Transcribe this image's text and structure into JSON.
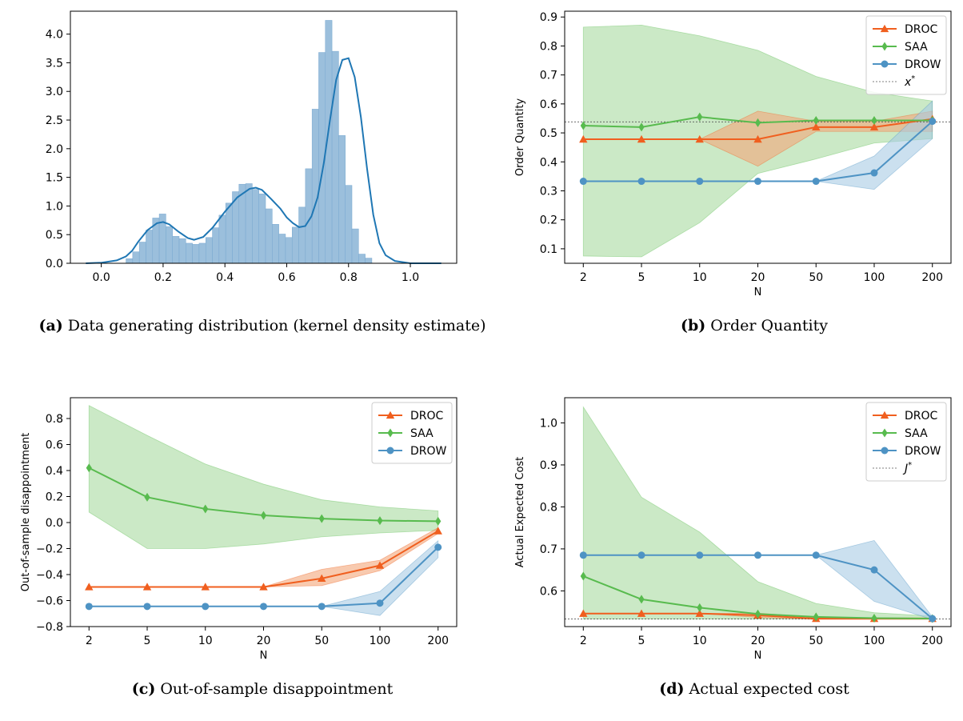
{
  "chart_data": [
    {
      "id": "a",
      "type": "bar",
      "caption_letter": "(a)",
      "caption_text": "Data generating distribution (kernel density estimate)",
      "title": "",
      "xlabel": "",
      "ylabel": "",
      "xlim": [
        -0.1,
        1.15
      ],
      "ylim": [
        0,
        4.4
      ],
      "xticks": [
        0.0,
        0.2,
        0.4,
        0.6,
        0.8,
        1.0
      ],
      "xtick_labels": [
        "0.0",
        "0.2",
        "0.4",
        "0.6",
        "0.8",
        "1.0"
      ],
      "yticks": [
        0.0,
        0.5,
        1.0,
        1.5,
        2.0,
        2.5,
        3.0,
        3.5,
        4.0
      ],
      "ytick_labels": [
        "0.0",
        "0.5",
        "1.0",
        "1.5",
        "2.0",
        "2.5",
        "3.0",
        "3.5",
        "4.0"
      ],
      "histogram": {
        "bin_start": 0.08,
        "bin_width": 0.0215,
        "heights": [
          0.08,
          0.2,
          0.37,
          0.58,
          0.79,
          0.86,
          0.64,
          0.47,
          0.43,
          0.35,
          0.33,
          0.35,
          0.45,
          0.62,
          0.84,
          1.05,
          1.25,
          1.38,
          1.39,
          1.29,
          1.21,
          0.95,
          0.68,
          0.51,
          0.45,
          0.63,
          0.98,
          1.65,
          2.69,
          3.68,
          4.24,
          3.7,
          2.23,
          1.36,
          0.6,
          0.16,
          0.09
        ]
      },
      "kde": {
        "x": [
          -0.05,
          0.0,
          0.05,
          0.08,
          0.1,
          0.12,
          0.15,
          0.18,
          0.2,
          0.22,
          0.25,
          0.28,
          0.3,
          0.33,
          0.36,
          0.4,
          0.44,
          0.48,
          0.5,
          0.52,
          0.55,
          0.58,
          0.6,
          0.62,
          0.64,
          0.66,
          0.68,
          0.7,
          0.72,
          0.74,
          0.76,
          0.78,
          0.8,
          0.82,
          0.84,
          0.86,
          0.88,
          0.9,
          0.92,
          0.95,
          1.0,
          1.05,
          1.1
        ],
        "y": [
          0.0,
          0.01,
          0.05,
          0.12,
          0.22,
          0.38,
          0.58,
          0.7,
          0.72,
          0.68,
          0.55,
          0.44,
          0.41,
          0.46,
          0.62,
          0.9,
          1.15,
          1.3,
          1.32,
          1.28,
          1.12,
          0.95,
          0.8,
          0.7,
          0.63,
          0.65,
          0.82,
          1.15,
          1.75,
          2.5,
          3.2,
          3.55,
          3.58,
          3.25,
          2.55,
          1.65,
          0.85,
          0.35,
          0.14,
          0.04,
          0.0,
          0.0,
          0.0
        ]
      },
      "colors": {
        "bar": "#9bbfdc",
        "bar_edge": "#78a8d0",
        "kde": "#1f77b4"
      }
    },
    {
      "id": "b",
      "type": "line",
      "caption_letter": "(b)",
      "caption_text": "Order Quantity",
      "title": "",
      "xlabel": "N",
      "ylabel": "Order Quantity",
      "categories": [
        "2",
        "5",
        "10",
        "20",
        "50",
        "100",
        "200"
      ],
      "ylim": [
        0.05,
        0.92
      ],
      "yticks": [
        0.1,
        0.2,
        0.3,
        0.4,
        0.5,
        0.6,
        0.7,
        0.8,
        0.9
      ],
      "ytick_labels": [
        "0.1",
        "0.2",
        "0.3",
        "0.4",
        "0.5",
        "0.6",
        "0.7",
        "0.8",
        "0.9"
      ],
      "legend_position": "top-right",
      "series": [
        {
          "name": "DROC",
          "marker": "triangle",
          "color": "#f05f1f",
          "band_color": "#f3a77a",
          "values": [
            0.478,
            0.478,
            0.478,
            0.478,
            0.52,
            0.52,
            0.548
          ],
          "lower": [
            0.478,
            0.478,
            0.478,
            0.385,
            0.505,
            0.505,
            0.505
          ],
          "upper": [
            0.478,
            0.478,
            0.478,
            0.575,
            0.54,
            0.54,
            0.575
          ]
        },
        {
          "name": "SAA",
          "marker": "diamond",
          "color": "#58bb4e",
          "band_color": "#a9dba0",
          "values": [
            0.525,
            0.52,
            0.555,
            0.535,
            0.543,
            0.543,
            0.543
          ],
          "lower": [
            0.075,
            0.072,
            0.19,
            0.36,
            0.41,
            0.465,
            0.48
          ],
          "upper": [
            0.865,
            0.872,
            0.835,
            0.785,
            0.695,
            0.64,
            0.61
          ]
        },
        {
          "name": "DROW",
          "marker": "circle",
          "color": "#4e93c4",
          "band_color": "#a8cce5",
          "values": [
            0.333,
            0.333,
            0.333,
            0.333,
            0.333,
            0.362,
            0.54
          ],
          "lower": [
            0.333,
            0.333,
            0.333,
            0.333,
            0.333,
            0.305,
            0.48
          ],
          "upper": [
            0.333,
            0.333,
            0.333,
            0.333,
            0.333,
            0.42,
            0.61
          ]
        }
      ],
      "reference_line": {
        "label": "x*",
        "value": 0.538
      }
    },
    {
      "id": "c",
      "type": "line",
      "caption_letter": "(c)",
      "caption_text": "Out-of-sample disappointment",
      "title": "",
      "xlabel": "N",
      "ylabel": "Out-of-sample disappointment",
      "categories": [
        "2",
        "5",
        "10",
        "20",
        "50",
        "100",
        "200"
      ],
      "ylim": [
        -0.8,
        0.96
      ],
      "yticks": [
        -0.8,
        -0.6,
        -0.4,
        -0.2,
        0.0,
        0.2,
        0.4,
        0.6,
        0.8
      ],
      "ytick_labels": [
        "−0.8",
        "−0.6",
        "−0.4",
        "−0.2",
        "0.0",
        "0.2",
        "0.4",
        "0.6",
        "0.8"
      ],
      "legend_position": "top-right",
      "series": [
        {
          "name": "DROC",
          "marker": "triangle",
          "color": "#f05f1f",
          "band_color": "#f3a77a",
          "values": [
            -0.495,
            -0.495,
            -0.495,
            -0.495,
            -0.43,
            -0.33,
            -0.065
          ],
          "lower": [
            -0.495,
            -0.495,
            -0.495,
            -0.495,
            -0.485,
            -0.37,
            -0.085
          ],
          "upper": [
            -0.495,
            -0.495,
            -0.495,
            -0.495,
            -0.36,
            -0.29,
            -0.04
          ]
        },
        {
          "name": "SAA",
          "marker": "diamond",
          "color": "#58bb4e",
          "band_color": "#a9dba0",
          "values": [
            0.42,
            0.195,
            0.105,
            0.055,
            0.03,
            0.015,
            0.01
          ],
          "lower": [
            0.08,
            -0.2,
            -0.2,
            -0.165,
            -0.11,
            -0.08,
            -0.06
          ],
          "upper": [
            0.9,
            0.67,
            0.45,
            0.295,
            0.175,
            0.12,
            0.09
          ]
        },
        {
          "name": "DROW",
          "marker": "circle",
          "color": "#4e93c4",
          "band_color": "#a8cce5",
          "values": [
            -0.645,
            -0.645,
            -0.645,
            -0.645,
            -0.645,
            -0.62,
            -0.19
          ],
          "lower": [
            -0.645,
            -0.645,
            -0.645,
            -0.645,
            -0.645,
            -0.715,
            -0.27
          ],
          "upper": [
            -0.645,
            -0.645,
            -0.645,
            -0.645,
            -0.645,
            -0.53,
            -0.14
          ]
        }
      ]
    },
    {
      "id": "d",
      "type": "line",
      "caption_letter": "(d)",
      "caption_text": "Actual expected cost",
      "title": "",
      "xlabel": "N",
      "ylabel": "Actual Expected Cost",
      "categories": [
        "2",
        "5",
        "10",
        "20",
        "50",
        "100",
        "200"
      ],
      "ylim": [
        0.515,
        1.06
      ],
      "yticks": [
        0.6,
        0.7,
        0.8,
        0.9,
        1.0
      ],
      "ytick_labels": [
        "0.6",
        "0.7",
        "0.8",
        "0.9",
        "1.0"
      ],
      "legend_position": "top-right",
      "series": [
        {
          "name": "DROC",
          "marker": "triangle",
          "color": "#f05f1f",
          "band_color": "#f3a77a",
          "values": [
            0.546,
            0.546,
            0.546,
            0.542,
            0.534,
            0.534,
            0.534
          ],
          "lower": [
            0.546,
            0.546,
            0.546,
            0.537,
            0.532,
            0.532,
            0.532
          ],
          "upper": [
            0.546,
            0.546,
            0.546,
            0.547,
            0.537,
            0.536,
            0.536
          ]
        },
        {
          "name": "SAA",
          "marker": "diamond",
          "color": "#58bb4e",
          "band_color": "#a9dba0",
          "values": [
            0.635,
            0.58,
            0.56,
            0.545,
            0.538,
            0.535,
            0.534
          ],
          "lower": [
            0.533,
            0.533,
            0.533,
            0.533,
            0.533,
            0.533,
            0.533
          ],
          "upper": [
            1.038,
            0.823,
            0.74,
            0.622,
            0.57,
            0.548,
            0.54
          ]
        },
        {
          "name": "DROW",
          "marker": "circle",
          "color": "#4e93c4",
          "band_color": "#a8cce5",
          "values": [
            0.685,
            0.685,
            0.685,
            0.685,
            0.685,
            0.65,
            0.534
          ],
          "lower": [
            0.685,
            0.685,
            0.685,
            0.685,
            0.685,
            0.575,
            0.532
          ],
          "upper": [
            0.685,
            0.685,
            0.685,
            0.685,
            0.685,
            0.72,
            0.538
          ]
        }
      ],
      "reference_line": {
        "label": "J*",
        "value": 0.533
      }
    }
  ]
}
